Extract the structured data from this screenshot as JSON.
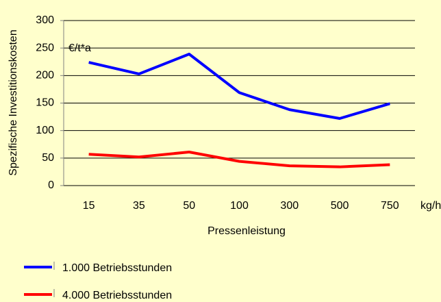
{
  "chart_data": {
    "type": "line",
    "y_label": "Spezifische Investitionskosten",
    "x_label": "Pressenleistung",
    "y_unit": "€/t*a",
    "x_unit": "kg/h",
    "categories": [
      "15",
      "35",
      "50",
      "100",
      "300",
      "500",
      "750"
    ],
    "series": [
      {
        "name": "1.000 Betriebsstunden",
        "color": "#0000ff",
        "values": [
          224,
          203,
          239,
          169,
          138,
          122,
          149
        ]
      },
      {
        "name": "4.000 Betriebsstunden",
        "color": "#ff0000",
        "values": [
          57,
          52,
          61,
          44,
          36,
          34,
          38
        ]
      }
    ],
    "ylim": [
      0,
      300
    ],
    "yticks": [
      0,
      50,
      100,
      150,
      200,
      250,
      300
    ],
    "grid": true
  }
}
